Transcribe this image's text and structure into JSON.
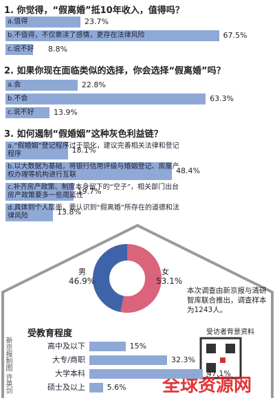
{
  "chart_data": [
    {
      "type": "bar",
      "title": "1. 你觉得，“假离婚”抵10年收入，值得吗？",
      "color": "#8fa9d6",
      "categories": [
        "a.值得",
        "b.不值得，不仅亵渎了感情，更存在法律风险",
        "c.说不好"
      ],
      "values": [
        23.7,
        67.5,
        8.8
      ],
      "value_labels": [
        "23.7%",
        "67.5%",
        "8.8%"
      ]
    },
    {
      "type": "bar",
      "title": "2. 如果你现在面临类似的选择，你会选择“假离婚”吗？",
      "color": "#8fa9d6",
      "categories": [
        "a.会",
        "b.不会",
        "c.说不好"
      ],
      "values": [
        22.8,
        63.3,
        13.9
      ],
      "value_labels": [
        "22.8%",
        "63.3%",
        "13.9%"
      ]
    },
    {
      "type": "bar",
      "title": "3. 如何遏制“假婚姻”这种灰色利益链？",
      "color": "#8fa9d6",
      "categories": [
        "a.“假婚姻”登记程序过于简化，建议完善相关法律和登记程序",
        "b.以大数据为基础，将银行信用评级与婚姻登记、房屋产权办理等机构进行互联",
        "c.补齐房产政策、制度本身留下的“空子”，相关部门出台房产政策要多一些周延性",
        "d.具体到个人层面，要认识到“假离婚”所存在的道德和法律风险"
      ],
      "values": [
        18.1,
        48.4,
        19.7,
        13.8
      ],
      "value_labels": [
        "18.1%",
        "48.4%",
        "19.7%",
        "13.8%"
      ]
    },
    {
      "type": "pie",
      "categories": [
        "男",
        "女"
      ],
      "values": [
        46.9,
        53.1
      ],
      "value_labels": [
        "46.9%",
        "53.1%"
      ],
      "colors": [
        "#3f63a8",
        "#d9647c"
      ]
    },
    {
      "type": "bar",
      "title": "受教育程度",
      "color": "#8fa9d6",
      "categories": [
        "高中及以下",
        "大专/商职",
        "大学本科",
        "硕士及以上"
      ],
      "values": [
        15,
        32.3,
        47.1,
        5.6
      ],
      "value_labels": [
        "15%",
        "32.3%",
        "47.1%",
        "5.6%"
      ]
    }
  ],
  "note": "本次调查由新京报与清研智库联合推出，调查样本为1243人。",
  "section_label": "受访者背景资料",
  "credit": "新京报制图 许英剑",
  "watermark": "全球资源网"
}
